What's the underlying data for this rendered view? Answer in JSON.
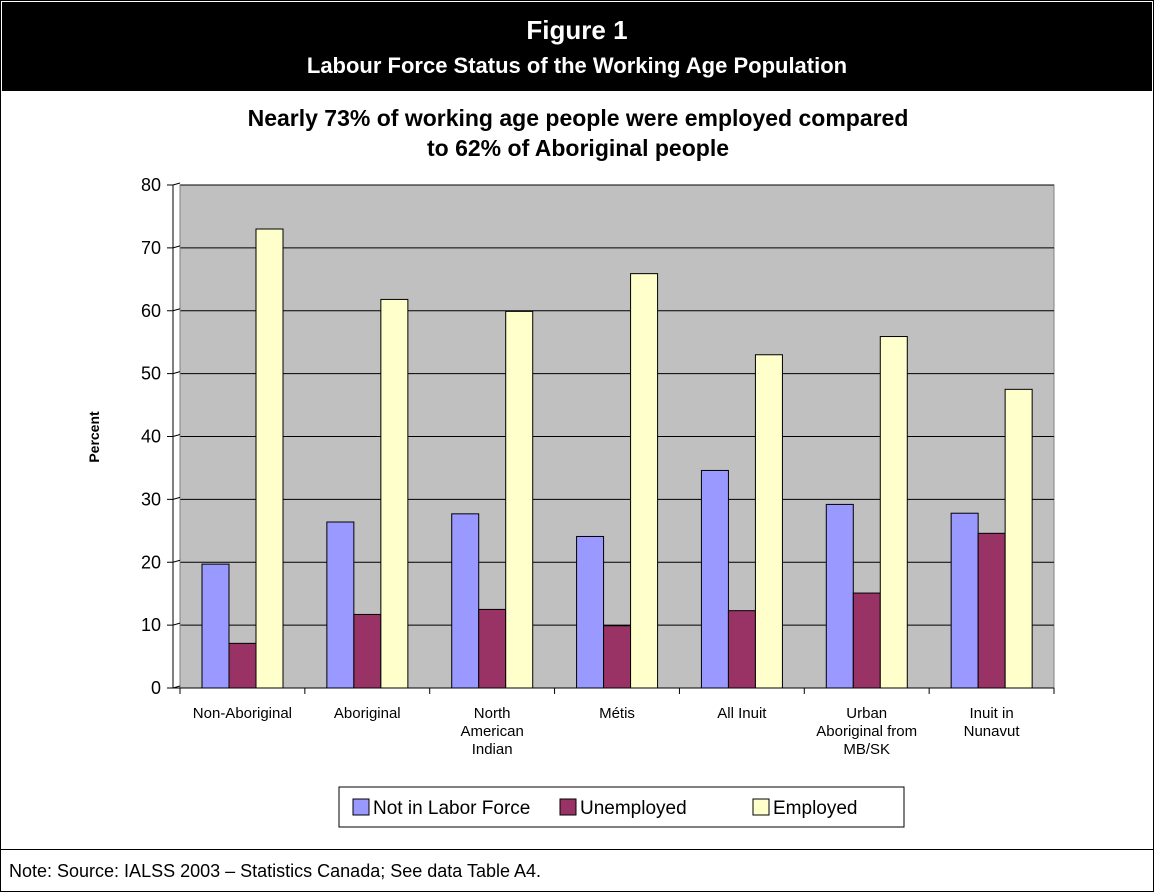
{
  "header": {
    "figure_label": "Figure 1",
    "subtitle": "Labour Force Status of the Working Age Population"
  },
  "chart_data": {
    "type": "bar",
    "title": "Nearly 73% of working age people were employed compared to 62% of Aboriginal people",
    "title_lines": [
      "Nearly 73% of working age people were employed compared",
      "to 62% of Aboriginal people"
    ],
    "ylabel": "Percent",
    "xlabel": "",
    "ylim": [
      0,
      80
    ],
    "yticks": [
      0,
      10,
      20,
      30,
      40,
      50,
      60,
      70,
      80
    ],
    "grid": true,
    "legend_position": "bottom",
    "categories": [
      [
        "Non-Aboriginal"
      ],
      [
        "Aboriginal"
      ],
      [
        "North",
        "American",
        "Indian"
      ],
      [
        "Métis"
      ],
      [
        "All Inuit"
      ],
      [
        "Urban",
        "Aboriginal from",
        "MB/SK"
      ],
      [
        "Inuit in",
        "Nunavut"
      ]
    ],
    "series": [
      {
        "name": "Not in Labor Force",
        "color": "#9999ff",
        "values": [
          19.7,
          26.4,
          27.7,
          24.1,
          34.6,
          29.2,
          27.8
        ]
      },
      {
        "name": "Unemployed",
        "color": "#993366",
        "values": [
          7.1,
          11.7,
          12.5,
          9.9,
          12.3,
          15.1,
          24.6
        ]
      },
      {
        "name": "Employed",
        "color": "#ffffcc",
        "values": [
          73.0,
          61.8,
          59.9,
          65.9,
          53.0,
          55.9,
          47.5
        ]
      }
    ],
    "plot_background": "#c0c0c0"
  },
  "note": "Note: Source: IALSS 2003 – Statistics Canada; See data Table A4."
}
